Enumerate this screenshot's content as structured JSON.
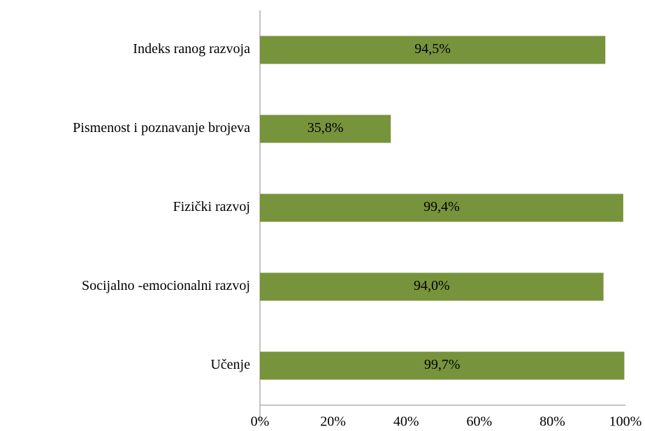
{
  "chart_data": {
    "type": "bar",
    "orientation": "horizontal",
    "categories": [
      "Indeks ranog razvoja",
      "Pismenost i poznavanje brojeva",
      "Fizički razvoj",
      "Socijalno -emocionalni razvoj",
      "Učenje"
    ],
    "values": [
      94.5,
      35.8,
      99.4,
      94.0,
      99.7
    ],
    "value_labels": [
      "94,5%",
      "35,8%",
      "99,4%",
      "94,0%",
      "99,7%"
    ],
    "color": "#77933c",
    "xlim": [
      0,
      100
    ],
    "xticks": [
      {
        "value": 0,
        "label": "0%"
      },
      {
        "value": 20,
        "label": "20%"
      },
      {
        "value": 40,
        "label": "40%"
      },
      {
        "value": 60,
        "label": "60%"
      },
      {
        "value": 80,
        "label": "80%"
      },
      {
        "value": 100,
        "label": "100%"
      }
    ]
  }
}
